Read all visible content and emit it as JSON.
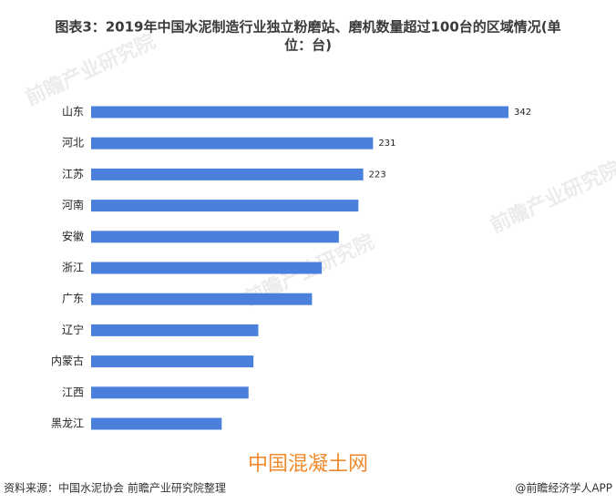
{
  "chart_data": {
    "type": "bar",
    "orientation": "horizontal",
    "title": "图表3：2019年中国水泥制造行业独立粉磨站、磨机数量超过100台的区域情况(单位：台)",
    "title_lines": [
      "图表3：2019年中国水泥制造行业独立粉磨站、磨机数量超过100台的区域情况(单",
      "位：台)"
    ],
    "categories": [
      "山东",
      "河北",
      "江苏",
      "河南",
      "安徽",
      "浙江",
      "广东",
      "辽宁",
      "内蒙古",
      "江西",
      "黑龙江"
    ],
    "values": [
      342,
      231,
      223,
      219,
      203,
      189,
      181,
      137,
      133,
      129,
      107
    ],
    "value_labels": [
      "342",
      "231",
      "223",
      null,
      null,
      null,
      null,
      null,
      null,
      null,
      null
    ],
    "color": "#4a80dc",
    "source": "资料来源：中国水泥协会 前瞻产业研究院整理",
    "footer": "@前瞻经济学人APP",
    "watermark": "中国混凝土网",
    "background_watermark": "前瞻产业研究院"
  }
}
